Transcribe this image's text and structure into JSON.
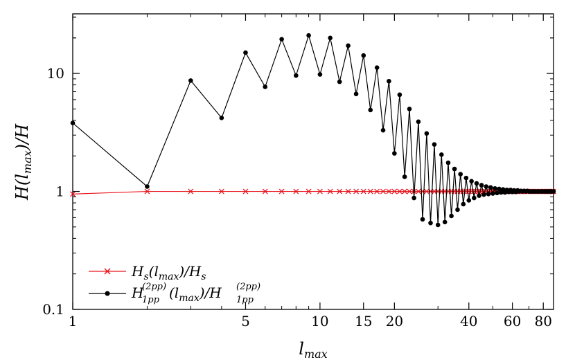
{
  "chart_data": {
    "type": "line",
    "xscale": "log",
    "yscale": "log",
    "xlim": [
      1,
      88
    ],
    "ylim": [
      0.1,
      32
    ],
    "x_ticks": [
      "1",
      "5",
      "10",
      "15",
      "20",
      "40",
      "60",
      "80"
    ],
    "y_ticks": [
      "0.1",
      "1",
      "10"
    ],
    "xlabel": {
      "main": "l",
      "sub": "max"
    },
    "ylabel": {
      "pre": "H(l",
      "sub": "max",
      "post": ")/H"
    },
    "grid": false,
    "legend_position": "bottom-left",
    "series": [
      {
        "name": "Hs(lmax)/Hs",
        "legend": {
          "a": "H",
          "a_sub": "s",
          "b": "(l",
          "b_sub": "max",
          "c": ")/H",
          "c_sub": "s"
        },
        "color": "#e8141c",
        "marker": "x",
        "x": [
          1,
          2,
          3,
          4,
          5,
          6,
          7,
          8,
          9,
          10,
          11,
          12,
          13,
          14,
          15,
          16,
          17,
          18,
          19,
          20,
          21,
          22,
          23,
          24,
          25,
          26,
          27,
          28,
          29,
          30,
          31,
          32,
          33,
          34,
          35,
          36,
          37,
          38,
          39,
          40,
          41,
          42,
          43,
          44,
          45,
          46,
          47,
          48,
          49,
          50,
          51,
          52,
          53,
          54,
          55,
          56,
          57,
          58,
          59,
          60,
          61,
          62,
          63,
          64,
          65,
          66,
          67,
          68,
          69,
          70,
          71,
          72,
          73,
          74,
          75,
          76,
          77,
          78,
          79,
          80,
          81,
          82,
          83,
          84,
          85,
          86,
          87,
          88
        ],
        "y": [
          0.95,
          1,
          1,
          1,
          1,
          1,
          1,
          1,
          1,
          1,
          1,
          1,
          1,
          1,
          1,
          1,
          1,
          1,
          1,
          1,
          1,
          1,
          1,
          1,
          1,
          1,
          1,
          1,
          1,
          1,
          1,
          1,
          1,
          1,
          1,
          1,
          1,
          1,
          1,
          1,
          1,
          1,
          1,
          1,
          1,
          1,
          1,
          1,
          1,
          1,
          1,
          1,
          1,
          1,
          1,
          1,
          1,
          1,
          1,
          1,
          1,
          1,
          1,
          1,
          1,
          1,
          1,
          1,
          1,
          1,
          1,
          1,
          1,
          1,
          1,
          1,
          1,
          1,
          1,
          1,
          1,
          1,
          1,
          1,
          1,
          1,
          1,
          1
        ]
      },
      {
        "name": "H1pp(2pp)(lmax)/H1pp(2pp)",
        "legend": {
          "a": "H",
          "a_sub": "1pp",
          "a_sup": "(2pp)",
          "b": "(l",
          "b_sub": "max",
          "c": ")/H",
          "c_sub": "1pp",
          "c_sup": "(2pp)"
        },
        "color": "#000000",
        "marker": "dot",
        "x": [
          1,
          2,
          3,
          4,
          5,
          6,
          7,
          8,
          9,
          10,
          11,
          12,
          13,
          14,
          15,
          16,
          17,
          18,
          19,
          20,
          21,
          22,
          23,
          24,
          25,
          26,
          27,
          28,
          29,
          30,
          31,
          32,
          33,
          34,
          35,
          36,
          37,
          38,
          39,
          40,
          41,
          42,
          43,
          44,
          45,
          46,
          47,
          48,
          49,
          50,
          51,
          52,
          53,
          54,
          55,
          56,
          57,
          58,
          59,
          60,
          61,
          62,
          63,
          64,
          65,
          66,
          67,
          68,
          69,
          70,
          71,
          72,
          73,
          74,
          75,
          76,
          77,
          78,
          79,
          80,
          81,
          82,
          83,
          84,
          85,
          86,
          87,
          88
        ],
        "y": [
          3.8,
          1.1,
          8.7,
          4.2,
          15,
          7.7,
          19.5,
          9.6,
          21,
          9.8,
          20,
          8.5,
          17.2,
          6.7,
          14.2,
          4.9,
          11.2,
          3.3,
          8.6,
          2.1,
          6.6,
          1.33,
          5,
          0.88,
          3.9,
          0.58,
          3.1,
          0.54,
          2.5,
          0.52,
          2.05,
          0.55,
          1.75,
          0.62,
          1.55,
          0.7,
          1.4,
          0.78,
          1.3,
          0.84,
          1.22,
          0.88,
          1.17,
          0.92,
          1.13,
          0.94,
          1.1,
          0.95,
          1.08,
          0.96,
          1.06,
          0.97,
          1.05,
          0.98,
          1.04,
          0.98,
          1.03,
          0.99,
          1.03,
          0.99,
          1.02,
          0.99,
          1.02,
          1,
          1.01,
          1,
          1.01,
          1,
          1.01,
          1,
          1,
          1,
          1,
          1,
          1,
          1,
          1,
          1,
          1,
          1,
          1,
          1,
          1,
          1,
          1,
          1,
          1,
          1
        ]
      }
    ]
  }
}
